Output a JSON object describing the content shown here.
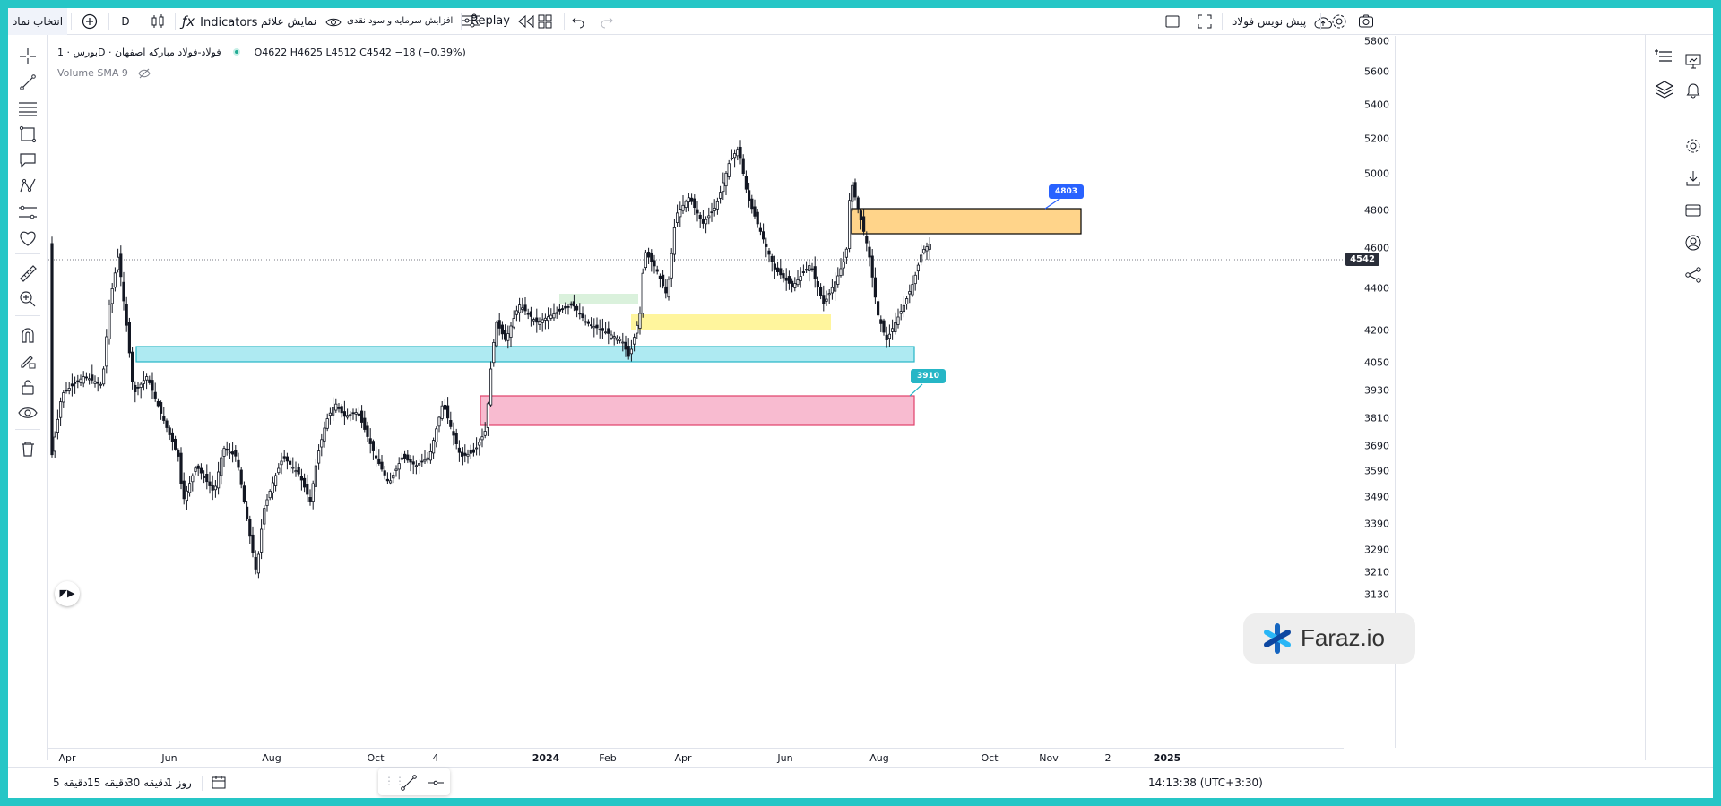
{
  "topbar": {
    "symbol_search": "انتخاب نماد",
    "interval": "D",
    "indicators_label": "Indicators",
    "show_signals": "نمایش علائم",
    "capital_increase": "افزایش سرمایه و سود نقدی",
    "replay_label": "Replay",
    "draft_label": "پیش نویس فولاد"
  },
  "legend": {
    "symbol": "بورس · 1D · فولاد-فولاد مبارکه اصفهان",
    "ohlc": "O4622  H4625  L4512  C4542  −18 (−0.39%)",
    "volume": "Volume SMA 9"
  },
  "price_axis": {
    "ticks": [
      "5800",
      "5600",
      "5400",
      "5200",
      "5000",
      "4800",
      "4600",
      "4400",
      "4200",
      "4050",
      "3930",
      "3810",
      "3690",
      "3590",
      "3490",
      "3390",
      "3290",
      "3210",
      "3130"
    ],
    "last_price": "4542"
  },
  "time_axis": {
    "labels": [
      "Apr",
      "Jun",
      "Aug",
      "Oct",
      "4",
      "2024",
      "Feb",
      "Apr",
      "Jun",
      "Aug",
      "Oct",
      "Nov",
      "2",
      "2025"
    ]
  },
  "annotations": {
    "target_upper": "4803",
    "target_lower": "3910"
  },
  "bottombar": {
    "ranges": [
      "روز 1",
      "دقیقه 30",
      "دقیقه 15",
      "دقیقه 5"
    ],
    "clock": "14:13:38 (UTC+3:30)"
  },
  "watermark": {
    "text": "Faraz.io"
  },
  "colors": {
    "accent_blue": "#2962ff",
    "zone_orange": "#ffd48a",
    "zone_cyan": "#aeeaf2",
    "zone_pink": "#f8bbd0",
    "zone_yellow": "#fff59d",
    "zone_green": "#d6efd8",
    "frame_teal": "#26c6c6"
  },
  "icons": [
    "crosshair-icon",
    "trendline-icon",
    "fib-icon",
    "rectangle-icon",
    "callout-icon",
    "pattern-icon",
    "forecast-icon",
    "heart-icon",
    "ruler-icon",
    "zoom-icon",
    "magnet-icon",
    "pencil-lock-icon",
    "lock-icon",
    "eye-icon",
    "trash-icon",
    "star-icon"
  ]
}
